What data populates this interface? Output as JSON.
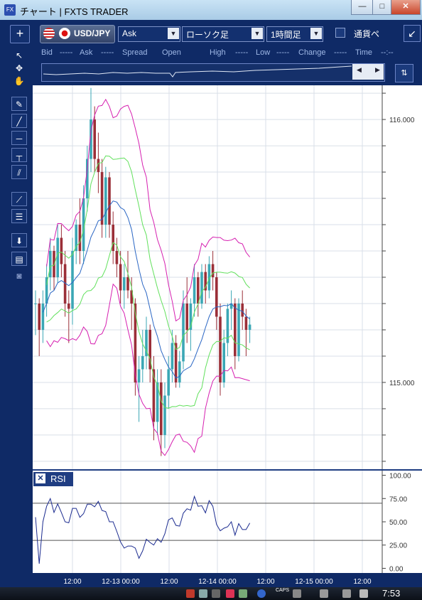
{
  "window": {
    "title": "チャート | FXTS TRADER",
    "app_icon": "FX",
    "minimize": "—",
    "maximize": "□",
    "close": "✕"
  },
  "toolbar": {
    "add_button": "+",
    "pair": "USD/JPY",
    "price_side": "Ask",
    "chart_type": "ローソク足",
    "timeframe": "1時間足",
    "currency_check_label": "通貨ペ",
    "collapse_button": "↙"
  },
  "quote": {
    "bid_label": "Bid",
    "bid_value": "-----",
    "ask_label": "Ask",
    "ask_value": "-----",
    "spread_label": "Spread",
    "open_label": "Open",
    "high_label": "High",
    "high_value": "-----",
    "low_label": "Low",
    "low_value": "-----",
    "change_label": "Change",
    "change_value": "-----",
    "time_label": "Time",
    "time_value": "--:--"
  },
  "tools": [
    "cursor-arrow-icon",
    "cursor-crosshair-icon",
    "hand-icon",
    "pencil-icon",
    "trend-line-icon",
    "horizontal-line-icon",
    "vertical-line-icon",
    "parallel-lines-icon",
    "fan-icon",
    "fibonacci-icon",
    "download-icon",
    "list-icon",
    "camera-icon"
  ],
  "chart_data": {
    "type": "candlestick",
    "pair": "USD/JPY",
    "timeframe": "1時間足",
    "y_ticks": [
      "116.000",
      "115.000"
    ],
    "y_tick_values": [
      116.0,
      115.0
    ],
    "ylim": [
      114.67,
      116.13
    ],
    "x_ticks": [
      "12:00",
      "12-13 00:00",
      "12:00",
      "12-14 00:00",
      "12:00",
      "12-15 00:00",
      "12:00"
    ],
    "series_colors": {
      "up": "#3ba7b5",
      "down": "#9b2f38",
      "bollinger_outer": "#d61fb0",
      "bollinger_inner": "#61e05c",
      "moving_average": "#2a66c4"
    },
    "candles": [
      [
        115.3,
        115.35,
        115.18,
        115.3
      ],
      [
        115.3,
        115.32,
        115.1,
        115.2
      ],
      [
        115.2,
        115.35,
        115.15,
        115.3
      ],
      [
        115.3,
        115.45,
        115.25,
        115.4
      ],
      [
        115.4,
        115.55,
        115.35,
        115.5
      ],
      [
        115.5,
        115.52,
        115.35,
        115.4
      ],
      [
        115.4,
        115.6,
        115.38,
        115.55
      ],
      [
        115.55,
        115.6,
        115.4,
        115.45
      ],
      [
        115.45,
        115.5,
        115.25,
        115.3
      ],
      [
        115.3,
        115.35,
        115.15,
        115.28
      ],
      [
        115.28,
        115.55,
        115.22,
        115.5
      ],
      [
        115.5,
        115.62,
        115.45,
        115.6
      ],
      [
        115.6,
        115.7,
        115.45,
        115.5
      ],
      [
        115.5,
        115.75,
        115.45,
        115.7
      ],
      [
        115.7,
        115.9,
        115.65,
        115.85
      ],
      [
        115.85,
        116.12,
        115.8,
        116.0
      ],
      [
        116.0,
        116.05,
        115.8,
        115.85
      ],
      [
        115.85,
        115.95,
        115.72,
        115.8
      ],
      [
        115.8,
        115.85,
        115.55,
        115.6
      ],
      [
        115.6,
        115.82,
        115.55,
        115.78
      ],
      [
        115.78,
        115.8,
        115.55,
        115.6
      ],
      [
        115.6,
        115.65,
        115.45,
        115.5
      ],
      [
        115.5,
        115.55,
        115.4,
        115.45
      ],
      [
        115.45,
        115.5,
        115.3,
        115.35
      ],
      [
        115.35,
        115.45,
        115.28,
        115.4
      ],
      [
        115.4,
        115.5,
        115.32,
        115.35
      ],
      [
        115.35,
        115.4,
        115.2,
        115.3
      ],
      [
        115.3,
        115.32,
        114.95,
        115.0
      ],
      [
        115.0,
        115.1,
        114.85,
        115.05
      ],
      [
        115.05,
        115.2,
        115.0,
        115.1
      ],
      [
        115.1,
        115.25,
        115.05,
        115.2
      ],
      [
        115.2,
        115.22,
        115.0,
        115.05
      ],
      [
        115.05,
        115.1,
        114.78,
        114.85
      ],
      [
        114.85,
        115.05,
        114.8,
        115.0
      ],
      [
        115.0,
        115.05,
        114.72,
        114.8
      ],
      [
        114.8,
        115.0,
        114.75,
        114.95
      ],
      [
        114.95,
        115.1,
        114.9,
        115.05
      ],
      [
        115.05,
        115.2,
        115.0,
        115.15
      ],
      [
        115.15,
        115.18,
        114.98,
        115.0
      ],
      [
        115.0,
        115.12,
        114.98,
        115.08
      ],
      [
        115.08,
        115.35,
        115.05,
        115.3
      ],
      [
        115.3,
        115.4,
        115.15,
        115.2
      ],
      [
        115.2,
        115.32,
        115.12,
        115.3
      ],
      [
        115.3,
        115.45,
        115.25,
        115.4
      ],
      [
        115.4,
        115.42,
        115.25,
        115.3
      ],
      [
        115.3,
        115.45,
        115.28,
        115.42
      ],
      [
        115.42,
        115.45,
        115.3,
        115.35
      ],
      [
        115.35,
        115.48,
        115.32,
        115.45
      ],
      [
        115.45,
        115.5,
        115.35,
        115.4
      ],
      [
        115.4,
        115.42,
        115.2,
        115.25
      ],
      [
        115.25,
        115.3,
        114.95,
        115.0
      ],
      [
        115.0,
        115.2,
        114.98,
        115.15
      ],
      [
        115.15,
        115.3,
        115.1,
        115.28
      ],
      [
        115.28,
        115.35,
        115.2,
        115.3
      ],
      [
        115.3,
        115.32,
        115.05,
        115.1
      ],
      [
        115.1,
        115.32,
        115.08,
        115.3
      ],
      [
        115.3,
        115.35,
        115.2,
        115.25
      ],
      [
        115.25,
        115.28,
        115.1,
        115.2
      ],
      [
        115.2,
        115.25,
        115.15,
        115.22
      ]
    ],
    "rsi": {
      "label": "RSI",
      "y_ticks": [
        "100.00",
        "75.00",
        "50.00",
        "25.00",
        "0.00"
      ],
      "y_tick_values": [
        100,
        75,
        50,
        25,
        0
      ],
      "levels": [
        70,
        30
      ],
      "ylim": [
        -5,
        105
      ]
    }
  },
  "taskbar": {
    "clock": "7:53",
    "caps_label": "CAPS"
  }
}
